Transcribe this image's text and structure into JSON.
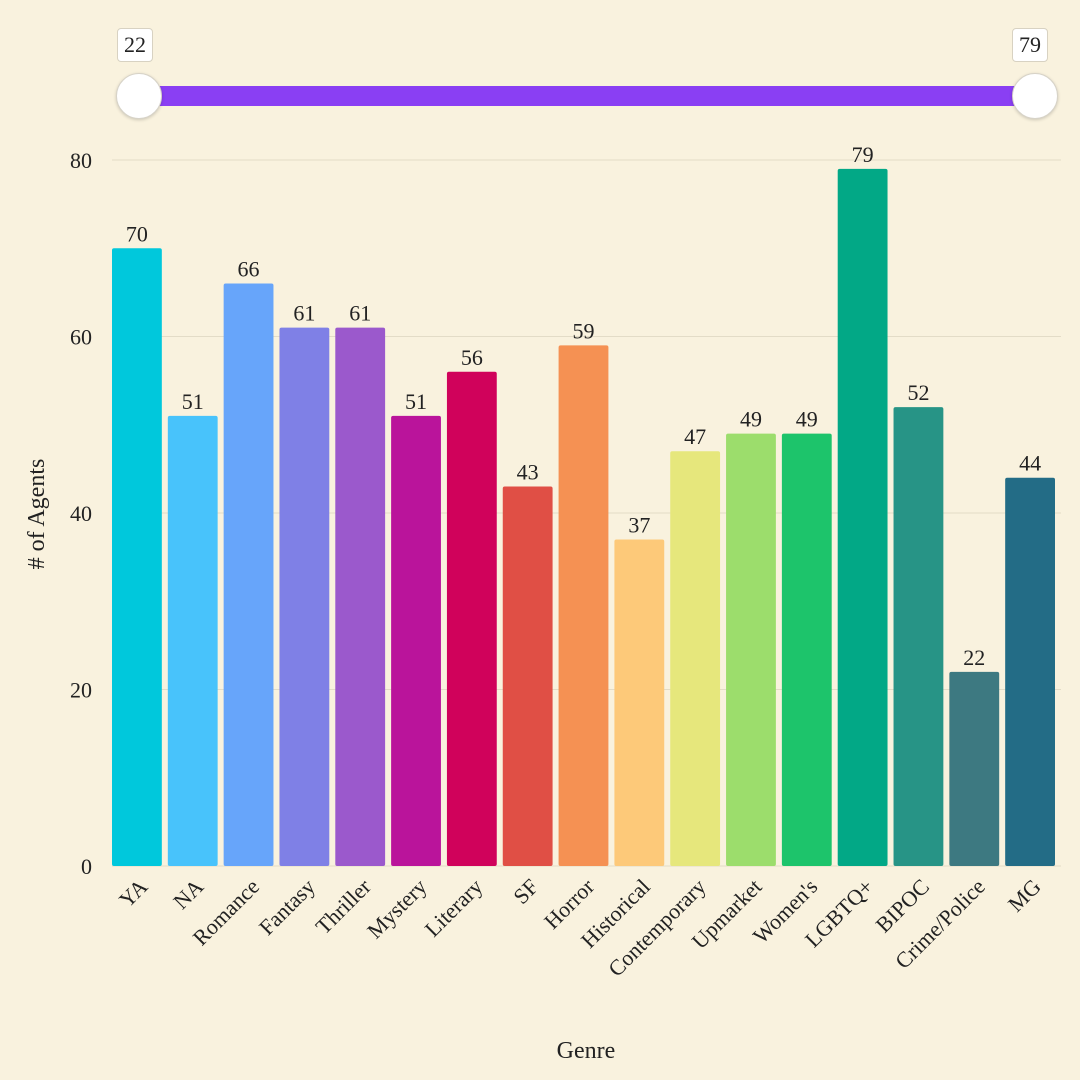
{
  "range_slider": {
    "min_value": 22,
    "max_value": 79,
    "min_label": "22",
    "max_label": "79",
    "track_color": "#8a3ff3"
  },
  "chart_data": {
    "type": "bar",
    "title": "",
    "xlabel": "Genre",
    "ylabel": "# of Agents",
    "ylim": [
      0,
      80
    ],
    "yticks": [
      0,
      20,
      40,
      60,
      80
    ],
    "grid": true,
    "categories": [
      "YA",
      "NA",
      "Romance",
      "Fantasy",
      "Thriller",
      "Mystery",
      "Literary",
      "SF",
      "Horror",
      "Historical",
      "Contemporary",
      "Upmarket",
      "Women's",
      "LGBTQ+",
      "BIPOC",
      "Crime/Police",
      "MG"
    ],
    "values": [
      70,
      51,
      66,
      61,
      61,
      51,
      56,
      43,
      59,
      37,
      47,
      49,
      49,
      79,
      52,
      22,
      44
    ],
    "colors": [
      "#00c8dc",
      "#48c3fb",
      "#67a5fa",
      "#7f80e6",
      "#9b59cc",
      "#ba149b",
      "#d0025b",
      "#e04f45",
      "#f59153",
      "#fdc979",
      "#e6e77c",
      "#9cdd6c",
      "#1dc46b",
      "#02a886",
      "#279486",
      "#3d7981",
      "#236c86"
    ]
  }
}
